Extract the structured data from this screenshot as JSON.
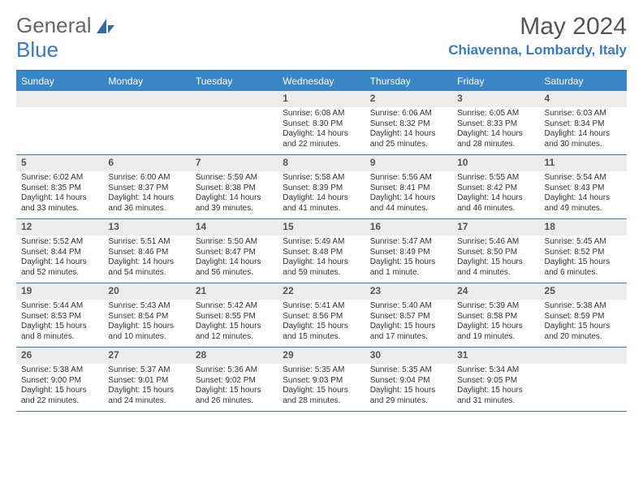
{
  "brand": {
    "part1": "General",
    "part2": "Blue"
  },
  "title": "May 2024",
  "location": "Chiavenna, Lombardy, Italy",
  "colors": {
    "accent": "#3a87c8",
    "accent_border": "#3a7bbf",
    "daynum_bg": "#ececec",
    "text": "#333333",
    "title_gray": "#555555"
  },
  "weekdays": [
    "Sunday",
    "Monday",
    "Tuesday",
    "Wednesday",
    "Thursday",
    "Friday",
    "Saturday"
  ],
  "weeks": [
    [
      {
        "n": "",
        "body": ""
      },
      {
        "n": "",
        "body": ""
      },
      {
        "n": "",
        "body": ""
      },
      {
        "n": "1",
        "body": "Sunrise: 6:08 AM\nSunset: 8:30 PM\nDaylight: 14 hours and 22 minutes."
      },
      {
        "n": "2",
        "body": "Sunrise: 6:06 AM\nSunset: 8:32 PM\nDaylight: 14 hours and 25 minutes."
      },
      {
        "n": "3",
        "body": "Sunrise: 6:05 AM\nSunset: 8:33 PM\nDaylight: 14 hours and 28 minutes."
      },
      {
        "n": "4",
        "body": "Sunrise: 6:03 AM\nSunset: 8:34 PM\nDaylight: 14 hours and 30 minutes."
      }
    ],
    [
      {
        "n": "5",
        "body": "Sunrise: 6:02 AM\nSunset: 8:35 PM\nDaylight: 14 hours and 33 minutes."
      },
      {
        "n": "6",
        "body": "Sunrise: 6:00 AM\nSunset: 8:37 PM\nDaylight: 14 hours and 36 minutes."
      },
      {
        "n": "7",
        "body": "Sunrise: 5:59 AM\nSunset: 8:38 PM\nDaylight: 14 hours and 39 minutes."
      },
      {
        "n": "8",
        "body": "Sunrise: 5:58 AM\nSunset: 8:39 PM\nDaylight: 14 hours and 41 minutes."
      },
      {
        "n": "9",
        "body": "Sunrise: 5:56 AM\nSunset: 8:41 PM\nDaylight: 14 hours and 44 minutes."
      },
      {
        "n": "10",
        "body": "Sunrise: 5:55 AM\nSunset: 8:42 PM\nDaylight: 14 hours and 46 minutes."
      },
      {
        "n": "11",
        "body": "Sunrise: 5:54 AM\nSunset: 8:43 PM\nDaylight: 14 hours and 49 minutes."
      }
    ],
    [
      {
        "n": "12",
        "body": "Sunrise: 5:52 AM\nSunset: 8:44 PM\nDaylight: 14 hours and 52 minutes."
      },
      {
        "n": "13",
        "body": "Sunrise: 5:51 AM\nSunset: 8:46 PM\nDaylight: 14 hours and 54 minutes."
      },
      {
        "n": "14",
        "body": "Sunrise: 5:50 AM\nSunset: 8:47 PM\nDaylight: 14 hours and 56 minutes."
      },
      {
        "n": "15",
        "body": "Sunrise: 5:49 AM\nSunset: 8:48 PM\nDaylight: 14 hours and 59 minutes."
      },
      {
        "n": "16",
        "body": "Sunrise: 5:47 AM\nSunset: 8:49 PM\nDaylight: 15 hours and 1 minute."
      },
      {
        "n": "17",
        "body": "Sunrise: 5:46 AM\nSunset: 8:50 PM\nDaylight: 15 hours and 4 minutes."
      },
      {
        "n": "18",
        "body": "Sunrise: 5:45 AM\nSunset: 8:52 PM\nDaylight: 15 hours and 6 minutes."
      }
    ],
    [
      {
        "n": "19",
        "body": "Sunrise: 5:44 AM\nSunset: 8:53 PM\nDaylight: 15 hours and 8 minutes."
      },
      {
        "n": "20",
        "body": "Sunrise: 5:43 AM\nSunset: 8:54 PM\nDaylight: 15 hours and 10 minutes."
      },
      {
        "n": "21",
        "body": "Sunrise: 5:42 AM\nSunset: 8:55 PM\nDaylight: 15 hours and 12 minutes."
      },
      {
        "n": "22",
        "body": "Sunrise: 5:41 AM\nSunset: 8:56 PM\nDaylight: 15 hours and 15 minutes."
      },
      {
        "n": "23",
        "body": "Sunrise: 5:40 AM\nSunset: 8:57 PM\nDaylight: 15 hours and 17 minutes."
      },
      {
        "n": "24",
        "body": "Sunrise: 5:39 AM\nSunset: 8:58 PM\nDaylight: 15 hours and 19 minutes."
      },
      {
        "n": "25",
        "body": "Sunrise: 5:38 AM\nSunset: 8:59 PM\nDaylight: 15 hours and 20 minutes."
      }
    ],
    [
      {
        "n": "26",
        "body": "Sunrise: 5:38 AM\nSunset: 9:00 PM\nDaylight: 15 hours and 22 minutes."
      },
      {
        "n": "27",
        "body": "Sunrise: 5:37 AM\nSunset: 9:01 PM\nDaylight: 15 hours and 24 minutes."
      },
      {
        "n": "28",
        "body": "Sunrise: 5:36 AM\nSunset: 9:02 PM\nDaylight: 15 hours and 26 minutes."
      },
      {
        "n": "29",
        "body": "Sunrise: 5:35 AM\nSunset: 9:03 PM\nDaylight: 15 hours and 28 minutes."
      },
      {
        "n": "30",
        "body": "Sunrise: 5:35 AM\nSunset: 9:04 PM\nDaylight: 15 hours and 29 minutes."
      },
      {
        "n": "31",
        "body": "Sunrise: 5:34 AM\nSunset: 9:05 PM\nDaylight: 15 hours and 31 minutes."
      },
      {
        "n": "",
        "body": ""
      }
    ]
  ]
}
